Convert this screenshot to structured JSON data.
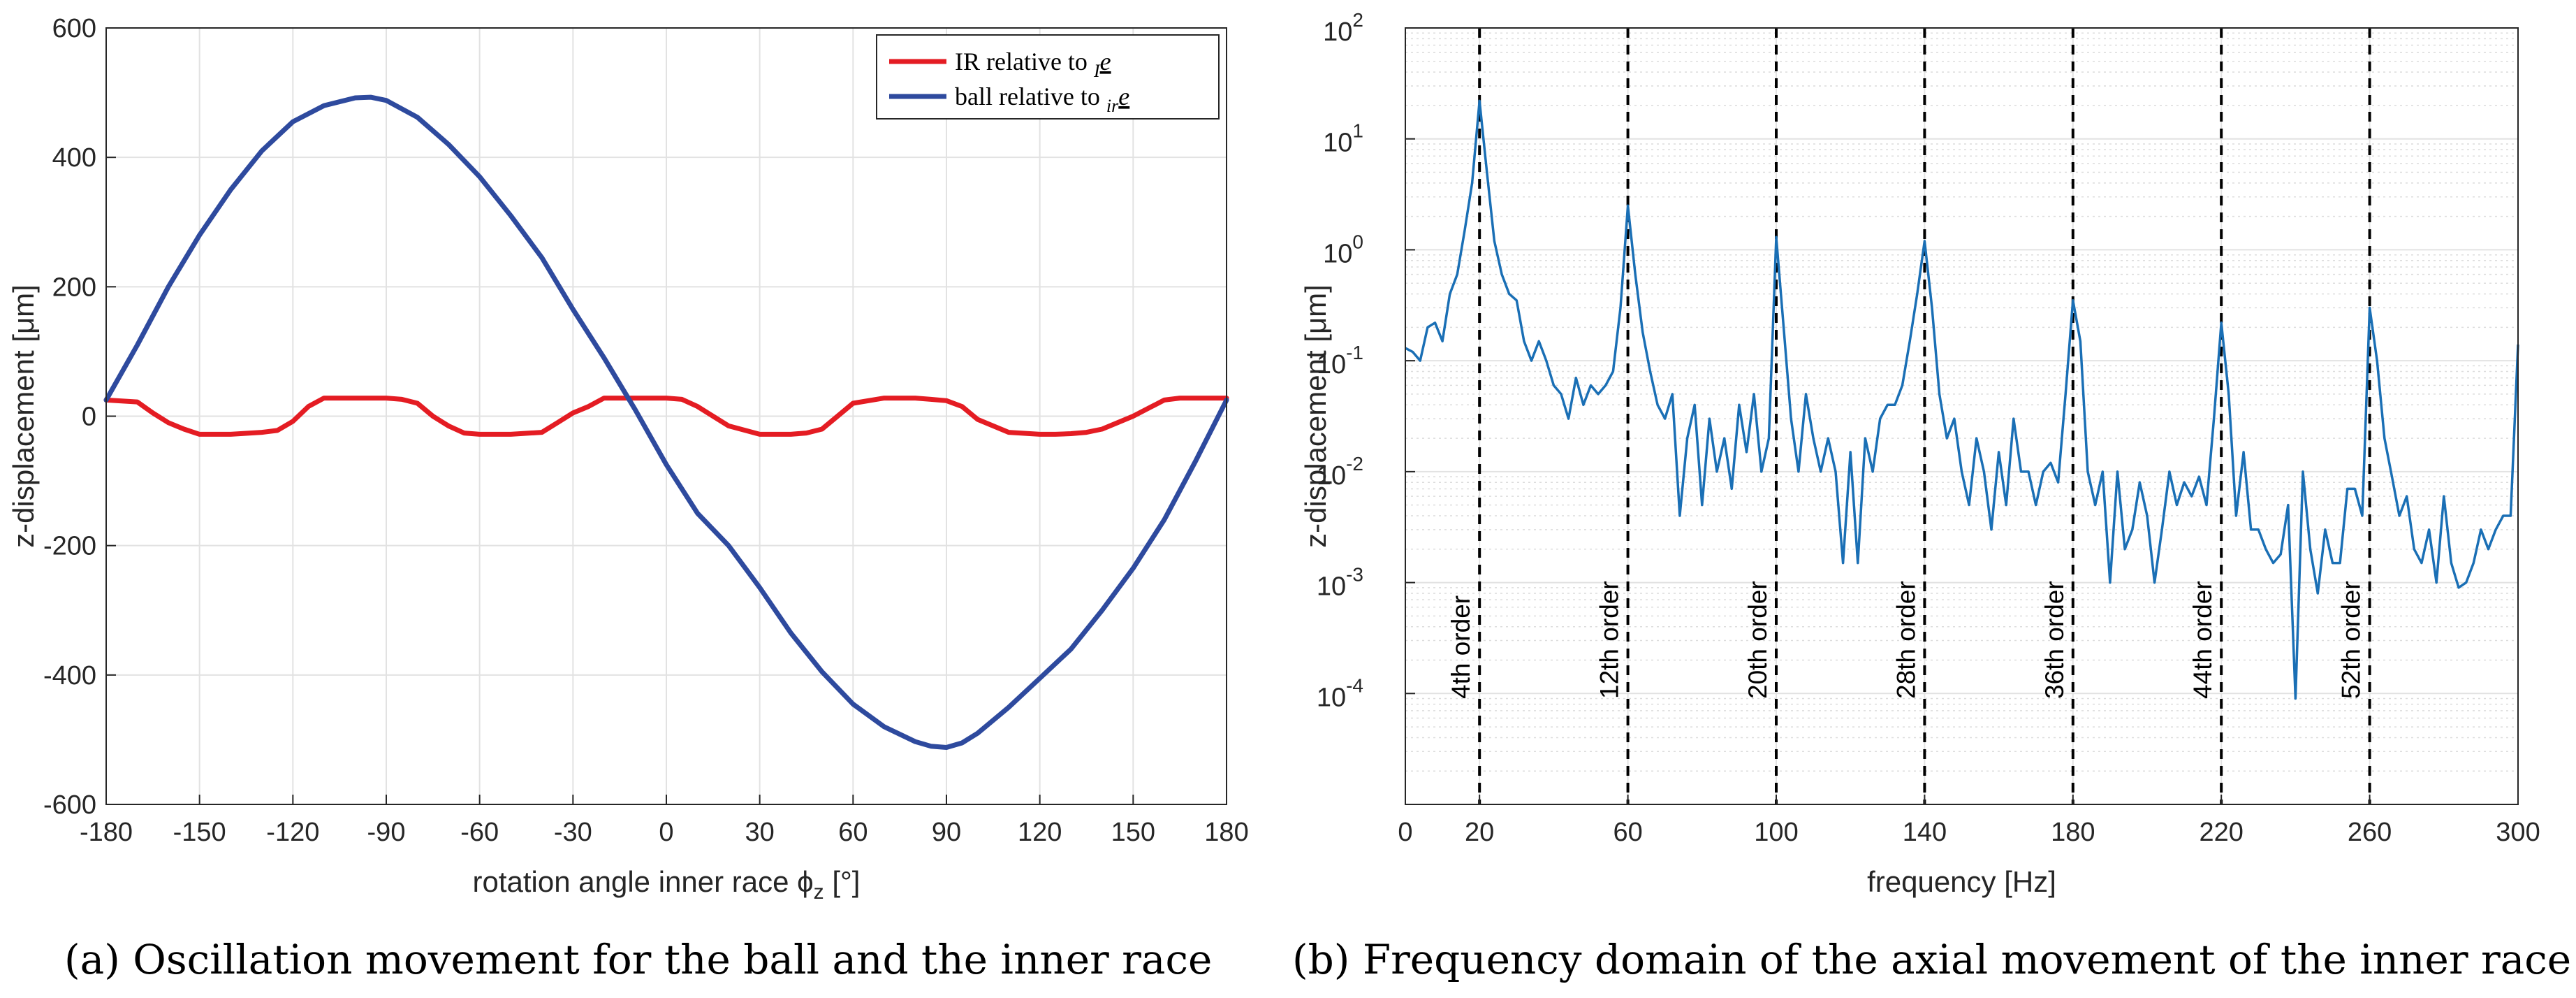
{
  "chart_data": [
    {
      "type": "line",
      "panel": "a",
      "caption": "(a)  Oscillation movement for the ball and the inner race",
      "xlabel": "rotation angle inner race ϕ",
      "xlabel_sub": "z",
      "xlabel_unit": " [°]",
      "ylabel": "z-displacement [μm]",
      "xlim": [
        -180,
        180
      ],
      "ylim": [
        -600,
        600
      ],
      "xticks": [
        -180,
        -150,
        -120,
        -90,
        -60,
        -30,
        0,
        30,
        60,
        90,
        120,
        150,
        180
      ],
      "yticks": [
        -600,
        -400,
        -200,
        0,
        200,
        400,
        600
      ],
      "grid": true,
      "legend_position": "top-right",
      "legend": [
        {
          "prefix": "IR relative to ",
          "sub": "I",
          "vec": "e"
        },
        {
          "prefix": "ball relative to ",
          "sub": "ir",
          "vec": "e"
        }
      ],
      "series": [
        {
          "name": "IR relative to Ie",
          "color": "#e41c23",
          "x": [
            -180,
            -170,
            -165,
            -160,
            -155,
            -150,
            -140,
            -130,
            -125,
            -120,
            -115,
            -110,
            -100,
            -90,
            -85,
            -80,
            -75,
            -70,
            -65,
            -60,
            -50,
            -40,
            -35,
            -30,
            -25,
            -20,
            -10,
            0,
            5,
            10,
            15,
            20,
            30,
            40,
            45,
            50,
            55,
            60,
            70,
            80,
            85,
            90,
            95,
            100,
            110,
            120,
            125,
            130,
            135,
            140,
            150,
            160,
            165,
            170,
            180
          ],
          "y": [
            25,
            22,
            5,
            -10,
            -20,
            -28,
            -28,
            -25,
            -22,
            -8,
            15,
            28,
            28,
            28,
            26,
            20,
            0,
            -15,
            -26,
            -28,
            -28,
            -25,
            -10,
            5,
            15,
            28,
            28,
            28,
            26,
            15,
            0,
            -15,
            -28,
            -28,
            -26,
            -20,
            0,
            20,
            28,
            28,
            26,
            24,
            15,
            -5,
            -25,
            -28,
            -28,
            -27,
            -25,
            -20,
            0,
            25,
            28,
            28,
            28
          ]
        },
        {
          "name": "ball relative to ire",
          "color": "#2e4a9e",
          "x": [
            -180,
            -170,
            -160,
            -150,
            -140,
            -130,
            -120,
            -110,
            -100,
            -95,
            -90,
            -80,
            -70,
            -60,
            -50,
            -40,
            -30,
            -20,
            -10,
            0,
            10,
            20,
            30,
            40,
            50,
            60,
            70,
            80,
            85,
            90,
            95,
            100,
            110,
            120,
            130,
            140,
            150,
            160,
            170,
            180
          ],
          "y": [
            25,
            110,
            200,
            280,
            350,
            410,
            455,
            480,
            492,
            493,
            488,
            462,
            420,
            370,
            310,
            245,
            165,
            90,
            10,
            -75,
            -150,
            -200,
            -265,
            -335,
            -395,
            -445,
            -480,
            -503,
            -510,
            -512,
            -505,
            -490,
            -450,
            -405,
            -360,
            -300,
            -235,
            -160,
            -70,
            25
          ]
        }
      ]
    },
    {
      "type": "line",
      "panel": "b",
      "caption": "(b)  Frequency domain of the axial movement of the inner race",
      "xlabel": "frequency [Hz]",
      "ylabel": "z-displacement [μm]",
      "yscale": "log",
      "xlim": [
        0,
        300
      ],
      "ylim": [
        1e-05,
        100
      ],
      "xticks": [
        0,
        20,
        60,
        100,
        140,
        180,
        220,
        260,
        300
      ],
      "ytick_exponents": [
        -4,
        -3,
        -2,
        -1,
        0,
        1,
        2
      ],
      "grid": true,
      "order_lines": [
        {
          "x": 20,
          "label": "4th order"
        },
        {
          "x": 60,
          "label": "12th order"
        },
        {
          "x": 100,
          "label": "20th order"
        },
        {
          "x": 140,
          "label": "28th order"
        },
        {
          "x": 180,
          "label": "36th order"
        },
        {
          "x": 220,
          "label": "44th order"
        },
        {
          "x": 260,
          "label": "52th order"
        }
      ],
      "series": [
        {
          "name": "spectrum",
          "color": "#1a6fb5",
          "x": [
            0,
            2,
            4,
            6,
            8,
            10,
            12,
            14,
            16,
            18,
            20,
            22,
            24,
            26,
            28,
            30,
            32,
            34,
            36,
            38,
            40,
            42,
            44,
            46,
            48,
            50,
            52,
            54,
            56,
            58,
            60,
            62,
            64,
            66,
            68,
            70,
            72,
            74,
            76,
            78,
            80,
            82,
            84,
            86,
            88,
            90,
            92,
            94,
            96,
            98,
            100,
            102,
            104,
            106,
            108,
            110,
            112,
            114,
            116,
            118,
            120,
            122,
            124,
            126,
            128,
            130,
            132,
            134,
            136,
            138,
            140,
            142,
            144,
            146,
            148,
            150,
            152,
            154,
            156,
            158,
            160,
            162,
            164,
            166,
            168,
            170,
            172,
            174,
            176,
            178,
            180,
            182,
            184,
            186,
            188,
            190,
            192,
            194,
            196,
            198,
            200,
            202,
            204,
            206,
            208,
            210,
            212,
            214,
            216,
            218,
            220,
            222,
            224,
            226,
            228,
            230,
            232,
            234,
            236,
            238,
            240,
            242,
            244,
            246,
            248,
            250,
            252,
            254,
            256,
            258,
            260,
            262,
            264,
            266,
            268,
            270,
            272,
            274,
            276,
            278,
            280,
            282,
            284,
            286,
            288,
            290,
            292,
            294,
            296,
            298,
            300
          ],
          "y": [
            0.13,
            0.12,
            0.1,
            0.2,
            0.22,
            0.15,
            0.4,
            0.6,
            1.5,
            4,
            22,
            5,
            1.2,
            0.6,
            0.4,
            0.35,
            0.15,
            0.1,
            0.15,
            0.1,
            0.06,
            0.05,
            0.03,
            0.07,
            0.04,
            0.06,
            0.05,
            0.06,
            0.08,
            0.3,
            2.5,
            0.6,
            0.18,
            0.08,
            0.04,
            0.03,
            0.05,
            0.004,
            0.02,
            0.04,
            0.005,
            0.03,
            0.01,
            0.02,
            0.007,
            0.04,
            0.015,
            0.05,
            0.01,
            0.02,
            1.3,
            0.2,
            0.03,
            0.01,
            0.05,
            0.02,
            0.01,
            0.02,
            0.01,
            0.0015,
            0.015,
            0.0015,
            0.02,
            0.01,
            0.03,
            0.04,
            0.04,
            0.06,
            0.15,
            0.4,
            1.2,
            0.3,
            0.05,
            0.02,
            0.03,
            0.01,
            0.005,
            0.02,
            0.01,
            0.003,
            0.015,
            0.005,
            0.03,
            0.01,
            0.01,
            0.005,
            0.01,
            0.012,
            0.008,
            0.05,
            0.35,
            0.15,
            0.01,
            0.005,
            0.01,
            0.001,
            0.01,
            0.002,
            0.003,
            0.008,
            0.004,
            0.001,
            0.003,
            0.01,
            0.005,
            0.008,
            0.006,
            0.009,
            0.005,
            0.03,
            0.22,
            0.05,
            0.004,
            0.015,
            0.003,
            0.003,
            0.002,
            0.0015,
            0.0018,
            0.005,
            9e-05,
            0.01,
            0.002,
            0.0008,
            0.003,
            0.0015,
            0.0015,
            0.007,
            0.007,
            0.004,
            0.3,
            0.1,
            0.02,
            0.009,
            0.004,
            0.006,
            0.002,
            0.0015,
            0.003,
            0.001,
            0.006,
            0.0015,
            0.0009,
            0.001,
            0.0015,
            0.003,
            0.002,
            0.003,
            0.004,
            0.004,
            0.14
          ]
        }
      ]
    }
  ]
}
